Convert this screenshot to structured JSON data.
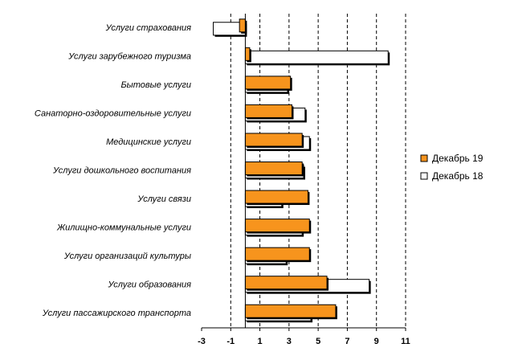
{
  "chart_data": {
    "type": "bar",
    "orientation": "horizontal",
    "title": "",
    "xlabel": "",
    "ylabel": "",
    "xlim": [
      -3,
      11
    ],
    "x_ticks": [
      -3,
      -1,
      1,
      3,
      5,
      7,
      9,
      11
    ],
    "x_tick_labels": [
      "-3",
      "-1",
      "1",
      "3",
      "5",
      "7",
      "9",
      "11"
    ],
    "gridlines": "dashed vertical",
    "legend_position": "right",
    "categories": [
      "Услуги страхования",
      "Услуги зарубежного туризма",
      "Бытовые услуги",
      "Санаторно-оздоровительные услуги",
      "Медицинские услуги",
      "Услуги дошкольного воспитания",
      "Услуги связи",
      "Жилищно-коммунальные услуги",
      "Услуги организаций культуры",
      "Услуги образования",
      "Услуги пассажирского транспорта"
    ],
    "series": [
      {
        "name": "Декабрь 19",
        "color": "#F7941D",
        "values": [
          -0.4,
          0.3,
          3.1,
          3.2,
          3.9,
          3.9,
          4.3,
          4.4,
          4.4,
          5.6,
          6.2
        ]
      },
      {
        "name": "Декабрь 18",
        "color": "#FFFFFF",
        "values": [
          -2.2,
          9.8,
          2.9,
          4.1,
          4.4,
          4.0,
          2.5,
          3.9,
          2.8,
          8.5,
          4.5
        ]
      }
    ]
  }
}
